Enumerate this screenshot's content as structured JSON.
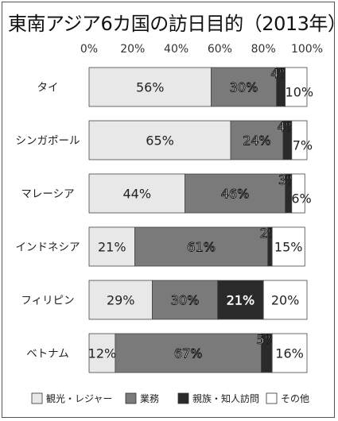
{
  "title": "東南アジア6カ国の訪日目的（2013年）",
  "chart_data": {
    "type": "bar",
    "orientation": "horizontal",
    "stacked": true,
    "normalized": true,
    "categories": [
      "タイ",
      "シンガポール",
      "マレーシア",
      "インドネシア",
      "フィリピン",
      "ベトナム"
    ],
    "series": [
      {
        "name": "観光・レジャー",
        "color": "#e8e8e8",
        "values": [
          56,
          65,
          44,
          21,
          29,
          12
        ]
      },
      {
        "name": "業務",
        "color": "#7a7a7a",
        "values": [
          30,
          24,
          46,
          61,
          30,
          67
        ]
      },
      {
        "name": "親族・知人訪問",
        "color": "#2a2a2a",
        "values": [
          4,
          4,
          3,
          2,
          21,
          5
        ]
      },
      {
        "name": "その他",
        "color": "#ffffff",
        "values": [
          10,
          7,
          6,
          15,
          20,
          16
        ]
      }
    ],
    "xlim": [
      0,
      100
    ],
    "x_ticks": [
      "0%",
      "20%",
      "40%",
      "60%",
      "80%",
      "100%"
    ],
    "legend_position": "bottom",
    "grid": false
  }
}
